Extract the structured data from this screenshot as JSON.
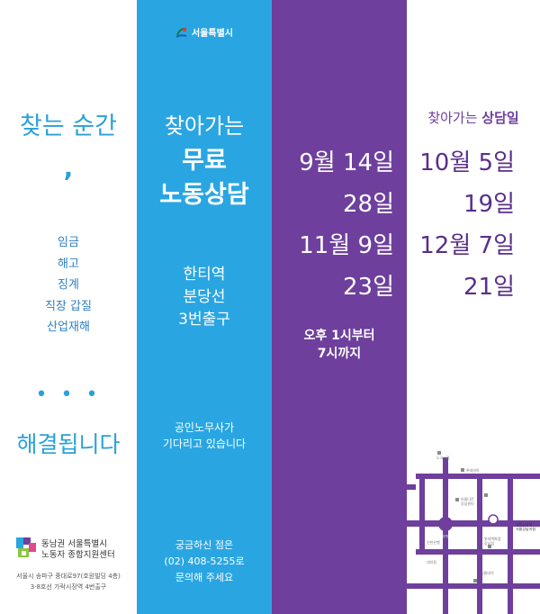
{
  "left": {
    "find_moment": "찾는 순간",
    "comma": ",",
    "issues": [
      "임금",
      "해고",
      "징계",
      "직장 갑질",
      "산업재해"
    ],
    "dots": "• • •",
    "solved": "해결됩니다",
    "org_line1": "동남권 서울특별시",
    "org_line2": "노동자 종합지원센터",
    "addr_line1": "서울시 송파구 중대로97(호원빌딩 4층)",
    "addr_line2": "3·8호선 가락시장역 4번출구"
  },
  "blue": {
    "city": "서울특별시",
    "visit": "찾아가는",
    "free_line1": "무료",
    "free_line2": "노동상담",
    "station_line1": "한티역",
    "station_line2": "분당선",
    "station_line3": "3번출구",
    "labor_line1": "공인노무사가",
    "labor_line2": "기다리고 있습니다",
    "contact_line1": "궁금하신 점은",
    "contact_line2": "(02) 408-5255로",
    "contact_line3": "문의해 주세요"
  },
  "purple": {
    "dates": [
      "9월 14일",
      "28일",
      "11월  9일",
      "23일"
    ],
    "time_line1": "오후 1시부터",
    "time_line2": "7시까지"
  },
  "right": {
    "heading_plain": "찾아가는 ",
    "heading_bold": "상담일",
    "dates": [
      "10월  5일",
      "19일",
      "12월  7일",
      "21일"
    ]
  },
  "map": {
    "labels": [
      "도곡시장",
      "롯데리아",
      "아름다운",
      "강남센터",
      "한티역",
      "고용노동부",
      "서울강남지청",
      "신한은행",
      "롯데백화점",
      "강남점",
      "대치동",
      "서울대치"
    ]
  },
  "colors": {
    "blue": "#29a6e2",
    "purple": "#6e3f9c",
    "text_blue": "#2aa1d8"
  }
}
